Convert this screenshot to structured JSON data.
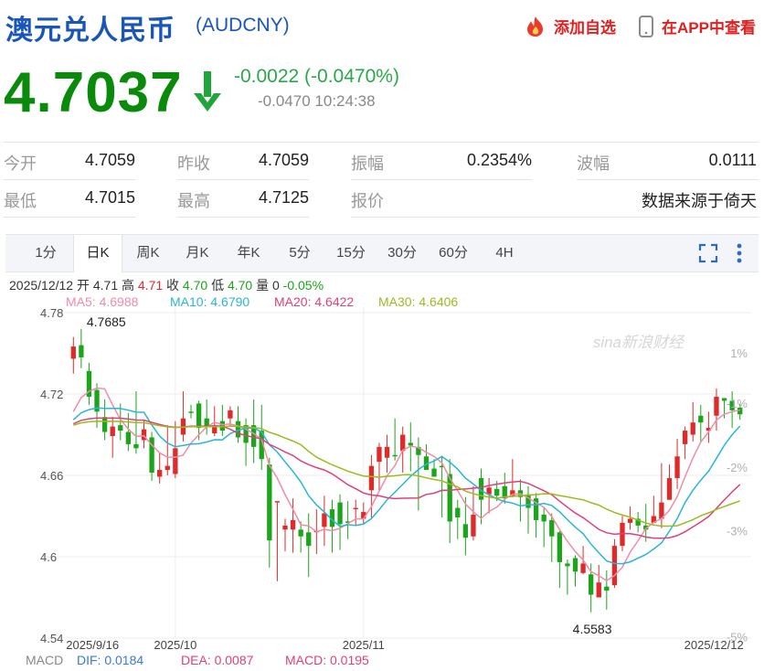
{
  "header": {
    "title": "澳元兑人民币",
    "code": "(AUDCNY)",
    "add_label": "添加自选",
    "app_label": "在APP中查看"
  },
  "price": {
    "last": "4.7037",
    "change": "-0.0022 (-0.0470%)",
    "sub_change": "-0.0470",
    "time": "10:24:38"
  },
  "quote": {
    "open_label": "今开",
    "open": "4.7059",
    "prev_label": "昨收",
    "prev": "4.7059",
    "amp_label": "振幅",
    "amp": "0.2354%",
    "wave_label": "波幅",
    "wave": "0.0111",
    "low_label": "最低",
    "low": "4.7015",
    "high_label": "最高",
    "high": "4.7125",
    "quote_label": "报价",
    "source": "数据来源于倚天"
  },
  "tabs": [
    {
      "label": "1分"
    },
    {
      "label": "日K"
    },
    {
      "label": "周K"
    },
    {
      "label": "月K"
    },
    {
      "label": "年K"
    },
    {
      "label": "5分"
    },
    {
      "label": "15分"
    },
    {
      "label": "30分"
    },
    {
      "label": "60分"
    },
    {
      "label": "4H"
    }
  ],
  "bar_info": {
    "date": "2025/12/12",
    "open_label": "开",
    "open": "4.71",
    "high_label": "高",
    "high": "4.71",
    "close_label": "收",
    "close": "4.70",
    "low_label": "低",
    "low": "4.70",
    "vol_label": "量",
    "vol": "0",
    "pct": "-0.05%"
  },
  "ma": {
    "ma5": "MA5: 4.6988",
    "ma10": "MA10: 4.6790",
    "ma20": "MA20: 4.6422",
    "ma30": "MA30: 4.6406"
  },
  "macd": {
    "label": "MACD",
    "dif": "DIF: 0.0184",
    "dea": "DEA: 0.0087",
    "macd": "MACD: 0.0195"
  },
  "colors": {
    "up": "#e02a2a",
    "down": "#1aa51a",
    "ma5": "#f08ca8",
    "ma10": "#29b6d6",
    "ma20": "#e0407a",
    "ma30": "#9bbb1e"
  },
  "chart_data": {
    "type": "candlestick",
    "y_ticks": [
      "4.78",
      "4.72",
      "4.66",
      "4.6",
      "4.54"
    ],
    "y_range": [
      4.54,
      4.78
    ],
    "pct_ticks": [
      "1%",
      "-1%",
      "-2%",
      "-3%",
      "-5%"
    ],
    "x_labels": [
      "2025/9/16",
      "2025/10",
      "2025/11",
      "2025/12/12"
    ],
    "annotations": {
      "max": "4.7685",
      "min": "4.5583"
    },
    "watermark": "sina新浪财经",
    "candles": [
      [
        4.746,
        4.755,
        4.762,
        4.735
      ],
      [
        4.756,
        4.747,
        4.768,
        4.739
      ],
      [
        4.737,
        4.718,
        4.743,
        4.712
      ],
      [
        4.723,
        4.707,
        4.728,
        4.695
      ],
      [
        4.703,
        4.692,
        4.716,
        4.686
      ],
      [
        4.689,
        4.696,
        4.703,
        4.673
      ],
      [
        4.697,
        4.693,
        4.713,
        4.686
      ],
      [
        4.692,
        4.683,
        4.706,
        4.678
      ],
      [
        4.683,
        4.68,
        4.722,
        4.676
      ],
      [
        4.686,
        4.694,
        4.701,
        4.68
      ],
      [
        4.688,
        4.662,
        4.692,
        4.656
      ],
      [
        4.659,
        4.664,
        4.677,
        4.654
      ],
      [
        4.664,
        4.667,
        4.697,
        4.66
      ],
      [
        4.661,
        4.68,
        4.7,
        4.658
      ],
      [
        4.69,
        4.702,
        4.722,
        4.685
      ],
      [
        4.707,
        4.706,
        4.712,
        4.702
      ],
      [
        4.713,
        4.695,
        4.715,
        4.686
      ],
      [
        4.702,
        4.696,
        4.716,
        4.69
      ],
      [
        4.691,
        4.697,
        4.711,
        4.689
      ],
      [
        4.7,
        4.693,
        4.712,
        4.689
      ],
      [
        4.702,
        4.708,
        4.711,
        4.696
      ],
      [
        4.7,
        4.688,
        4.711,
        4.684
      ],
      [
        4.697,
        4.684,
        4.702,
        4.667
      ],
      [
        4.697,
        4.681,
        4.716,
        4.669
      ],
      [
        4.693,
        4.672,
        4.712,
        4.664
      ],
      [
        4.668,
        4.612,
        4.673,
        4.592
      ],
      [
        4.64,
        4.641,
        4.64,
        4.582
      ],
      [
        4.62,
        4.623,
        4.628,
        4.604
      ],
      [
        4.62,
        4.627,
        4.643,
        4.603
      ],
      [
        4.62,
        4.615,
        4.626,
        4.603
      ],
      [
        4.618,
        4.608,
        4.632,
        4.585
      ],
      [
        4.618,
        4.619,
        4.635,
        4.602
      ],
      [
        4.622,
        4.632,
        4.645,
        4.608
      ],
      [
        4.635,
        4.622,
        4.642,
        4.603
      ],
      [
        4.64,
        4.624,
        4.646,
        4.605
      ],
      [
        4.626,
        4.625,
        4.641,
        4.613
      ],
      [
        4.635,
        4.636,
        4.642,
        4.623
      ],
      [
        4.628,
        4.633,
        4.64,
        4.624
      ],
      [
        4.649,
        4.667,
        4.675,
        4.629
      ],
      [
        4.67,
        4.681,
        4.684,
        4.648
      ],
      [
        4.673,
        4.681,
        4.69,
        4.662
      ],
      [
        4.675,
        4.674,
        4.702,
        4.671
      ],
      [
        4.678,
        4.69,
        4.696,
        4.662
      ],
      [
        4.684,
        4.682,
        4.699,
        4.663
      ],
      [
        4.681,
        4.675,
        4.688,
        4.634
      ],
      [
        4.674,
        4.664,
        4.683,
        4.664
      ],
      [
        4.665,
        4.659,
        4.672,
        4.661
      ],
      [
        4.667,
        4.666,
        4.674,
        4.629
      ],
      [
        4.661,
        4.626,
        4.672,
        4.61
      ],
      [
        4.636,
        4.629,
        4.642,
        4.613
      ],
      [
        4.624,
        4.614,
        4.644,
        4.601
      ],
      [
        4.615,
        4.631,
        4.652,
        4.612
      ],
      [
        4.658,
        4.642,
        4.665,
        4.624
      ],
      [
        4.646,
        4.651,
        4.658,
        4.632
      ],
      [
        4.65,
        4.645,
        4.656,
        4.641
      ],
      [
        4.652,
        4.643,
        4.662,
        4.639
      ],
      [
        4.645,
        4.649,
        4.672,
        4.644
      ],
      [
        4.649,
        4.644,
        4.657,
        4.626
      ],
      [
        4.646,
        4.636,
        4.652,
        4.617
      ],
      [
        4.643,
        4.627,
        4.647,
        4.614
      ],
      [
        4.631,
        4.626,
        4.636,
        4.607
      ],
      [
        4.627,
        4.615,
        4.632,
        4.596
      ],
      [
        4.618,
        4.596,
        4.619,
        4.577
      ],
      [
        4.595,
        4.593,
        4.598,
        4.572
      ],
      [
        4.599,
        4.589,
        4.601,
        4.578
      ],
      [
        4.588,
        4.595,
        4.608,
        4.587
      ],
      [
        4.587,
        4.572,
        4.595,
        4.559
      ],
      [
        4.57,
        4.581,
        4.594,
        4.571
      ],
      [
        4.578,
        4.575,
        4.59,
        4.561
      ],
      [
        4.579,
        4.608,
        4.613,
        4.577
      ],
      [
        4.608,
        4.625,
        4.63,
        4.604
      ],
      [
        4.625,
        4.628,
        4.637,
        4.62
      ],
      [
        4.628,
        4.623,
        4.633,
        4.618
      ],
      [
        4.623,
        4.62,
        4.639,
        4.611
      ],
      [
        4.625,
        4.63,
        4.645,
        4.625
      ],
      [
        4.628,
        4.64,
        4.669,
        4.621
      ],
      [
        4.642,
        4.658,
        4.668,
        4.642
      ],
      [
        4.658,
        4.674,
        4.687,
        4.65
      ],
      [
        4.683,
        4.693,
        4.696,
        4.672
      ],
      [
        4.69,
        4.699,
        4.714,
        4.685
      ],
      [
        4.704,
        4.699,
        4.712,
        4.684
      ],
      [
        4.693,
        4.695,
        4.707,
        4.684
      ],
      [
        4.704,
        4.718,
        4.724,
        4.693
      ],
      [
        4.717,
        4.715,
        4.717,
        4.702
      ],
      [
        4.715,
        4.708,
        4.722,
        4.695
      ],
      [
        4.71,
        4.705,
        4.713,
        4.701
      ]
    ]
  }
}
